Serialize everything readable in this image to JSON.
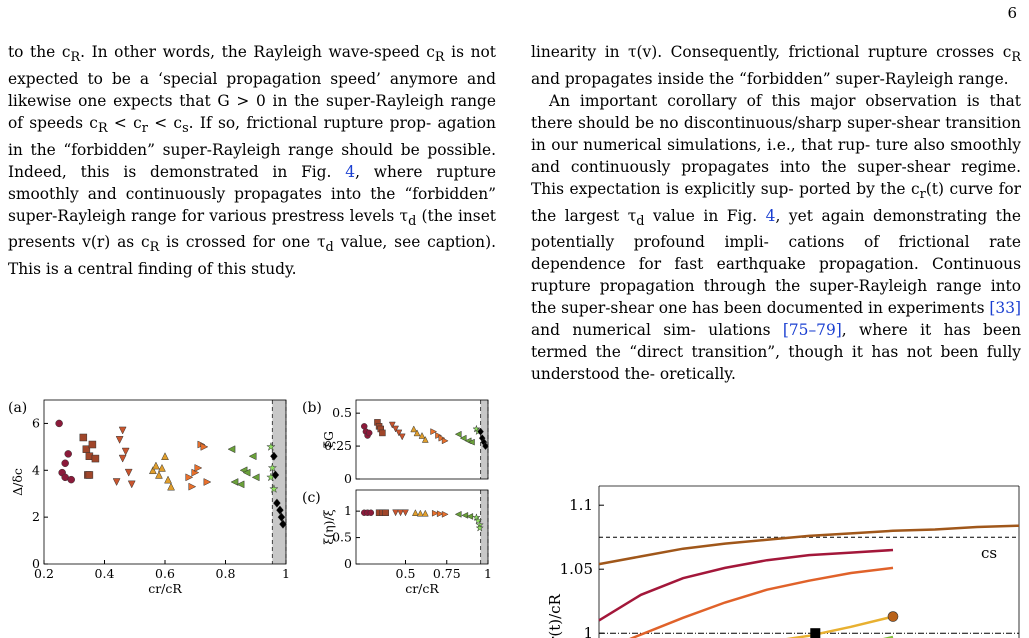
{
  "page_number": "6",
  "left_column": {
    "l1": "to the c",
    "l1b": ". In other words, the Rayleigh wave-speed c",
    "l1c": " is",
    "l2": "not expected to be a ‘special propagation speed’ anymore",
    "l3a": "and likewise one expects that G > 0 in the super-Rayleigh",
    "l4a": "range of speeds c",
    "l4b": " < c",
    "l4c": " < c",
    "l4d": ". If so, frictional rupture prop-",
    "l5": "agation in the “forbidden” super-Rayleigh range should",
    "l6a": "be possible. Indeed, this is demonstrated in Fig. ",
    "l6ref": "4",
    "l6b": ", where",
    "l7": "rupture smoothly and continuously propagates into the",
    "l8": "“forbidden” super-Rayleigh range for various prestress",
    "l9a": "levels τ",
    "l9b": " (the inset presents v(r) as c",
    "l9c": " is crossed for one",
    "l10a": "τ",
    "l10b": " value, see caption). This is a central finding of this",
    "l11": "study."
  },
  "right_column": {
    "r1": "linearity in τ(v). Consequently, frictional rupture crosses",
    "r2a": "c",
    "r2b": " and propagates inside the “forbidden” super-Rayleigh",
    "r3": "range.",
    "r4": "An important corollary of this major observation is",
    "r5": "that there should be no discontinuous/sharp super-shear",
    "r6": "transition in our numerical simulations, i.e., that rup-",
    "r7": "ture also smoothly and continuously propagates into the",
    "r8": "super-shear regime. This expectation is explicitly sup-",
    "r9a": "ported by the c",
    "r9b": "(t) curve for the largest τ",
    "r9c": " value in Fig. ",
    "r9ref": "4",
    "r9d": ",",
    "r10": "yet again demonstrating the potentially profound impli-",
    "r11": "cations of frictional rate dependence for fast earthquake",
    "r12": "propagation. Continuous rupture propagation through",
    "r13": "the super-Rayleigh range into the super-shear one has",
    "r14a": "been documented in experiments ",
    "r14ref": "[33]",
    "r14b": " and numerical sim-",
    "r15a": "ulations ",
    "r15ref": "[75–79]",
    "r15b": ", where it has been termed the “direct",
    "r16": "transition”, though it has not been fully understood the-",
    "r17": "oretically."
  },
  "sub_R": "R",
  "sub_r": "r",
  "sub_s": "s",
  "sub_d": "d",
  "chart_data": [
    {
      "panel": "(a)",
      "type": "scatter",
      "xlabel": "cr/cR",
      "ylabel": "Δ/δc",
      "xlim": [
        0.2,
        1.0
      ],
      "ylim": [
        0,
        7
      ],
      "xticks": [
        "0.2",
        "0.4",
        "0.6",
        "0.8",
        "1"
      ],
      "yticks": [
        "0",
        "2",
        "4",
        "6"
      ],
      "shaded_region": [
        0.955,
        1.0
      ],
      "points": [
        {
          "x": 0.25,
          "y": 6.0,
          "c": "#8b1a3a",
          "m": "o"
        },
        {
          "x": 0.26,
          "y": 3.9,
          "c": "#8b1a3a",
          "m": "o"
        },
        {
          "x": 0.27,
          "y": 3.7,
          "c": "#8b1a3a",
          "m": "o"
        },
        {
          "x": 0.27,
          "y": 4.3,
          "c": "#8b1a3a",
          "m": "o"
        },
        {
          "x": 0.28,
          "y": 4.7,
          "c": "#8b1a3a",
          "m": "o"
        },
        {
          "x": 0.29,
          "y": 3.6,
          "c": "#8b1a3a",
          "m": "o"
        },
        {
          "x": 0.33,
          "y": 5.4,
          "c": "#a0462a",
          "m": "s"
        },
        {
          "x": 0.34,
          "y": 4.9,
          "c": "#a0462a",
          "m": "s"
        },
        {
          "x": 0.35,
          "y": 4.6,
          "c": "#a0462a",
          "m": "s"
        },
        {
          "x": 0.36,
          "y": 5.1,
          "c": "#a0462a",
          "m": "s"
        },
        {
          "x": 0.37,
          "y": 4.5,
          "c": "#a0462a",
          "m": "s"
        },
        {
          "x": 0.345,
          "y": 3.8,
          "c": "#a0462a",
          "m": "s"
        },
        {
          "x": 0.35,
          "y": 3.8,
          "c": "#a0462a",
          "m": "s"
        },
        {
          "x": 0.45,
          "y": 5.3,
          "c": "#c9552e",
          "m": "v"
        },
        {
          "x": 0.46,
          "y": 4.5,
          "c": "#c9552e",
          "m": "v"
        },
        {
          "x": 0.47,
          "y": 4.8,
          "c": "#c9552e",
          "m": "v"
        },
        {
          "x": 0.48,
          "y": 3.9,
          "c": "#c9552e",
          "m": "v"
        },
        {
          "x": 0.49,
          "y": 3.4,
          "c": "#c9552e",
          "m": "v"
        },
        {
          "x": 0.46,
          "y": 5.7,
          "c": "#c9552e",
          "m": "v"
        },
        {
          "x": 0.44,
          "y": 3.5,
          "c": "#c9552e",
          "m": "v"
        },
        {
          "x": 0.56,
          "y": 4.0,
          "c": "#e09e2c",
          "m": "^"
        },
        {
          "x": 0.57,
          "y": 4.2,
          "c": "#e09e2c",
          "m": "^"
        },
        {
          "x": 0.58,
          "y": 3.8,
          "c": "#e09e2c",
          "m": "^"
        },
        {
          "x": 0.59,
          "y": 4.1,
          "c": "#e09e2c",
          "m": "^"
        },
        {
          "x": 0.6,
          "y": 4.6,
          "c": "#e09e2c",
          "m": "^"
        },
        {
          "x": 0.61,
          "y": 3.6,
          "c": "#e09e2c",
          "m": "^"
        },
        {
          "x": 0.62,
          "y": 3.3,
          "c": "#e09e2c",
          "m": "^"
        },
        {
          "x": 0.68,
          "y": 3.7,
          "c": "#e8702c",
          "m": ">"
        },
        {
          "x": 0.69,
          "y": 3.3,
          "c": "#e8702c",
          "m": ">"
        },
        {
          "x": 0.7,
          "y": 3.9,
          "c": "#e8702c",
          "m": ">"
        },
        {
          "x": 0.71,
          "y": 4.1,
          "c": "#e8702c",
          "m": ">"
        },
        {
          "x": 0.72,
          "y": 5.1,
          "c": "#e8702c",
          "m": ">"
        },
        {
          "x": 0.73,
          "y": 5.0,
          "c": "#e8702c",
          "m": ">"
        },
        {
          "x": 0.74,
          "y": 3.5,
          "c": "#e8702c",
          "m": ">"
        },
        {
          "x": 0.82,
          "y": 4.9,
          "c": "#6aa03a",
          "m": "<"
        },
        {
          "x": 0.83,
          "y": 3.5,
          "c": "#6aa03a",
          "m": "<"
        },
        {
          "x": 0.85,
          "y": 3.4,
          "c": "#6aa03a",
          "m": "<"
        },
        {
          "x": 0.86,
          "y": 4.0,
          "c": "#6aa03a",
          "m": "<"
        },
        {
          "x": 0.87,
          "y": 3.9,
          "c": "#6aa03a",
          "m": "<"
        },
        {
          "x": 0.9,
          "y": 3.7,
          "c": "#6aa03a",
          "m": "<"
        },
        {
          "x": 0.89,
          "y": 4.6,
          "c": "#6aa03a",
          "m": "<"
        },
        {
          "x": 0.95,
          "y": 5.0,
          "c": "#90e060",
          "m": "*"
        },
        {
          "x": 0.955,
          "y": 4.1,
          "c": "#90e060",
          "m": "*"
        },
        {
          "x": 0.96,
          "y": 3.2,
          "c": "#90e060",
          "m": "*"
        },
        {
          "x": 0.95,
          "y": 3.7,
          "c": "#90e060",
          "m": "*"
        },
        {
          "x": 0.96,
          "y": 4.6,
          "c": "#000000",
          "m": "d"
        },
        {
          "x": 0.965,
          "y": 3.8,
          "c": "#000000",
          "m": "d"
        },
        {
          "x": 0.97,
          "y": 2.6,
          "c": "#000000",
          "m": "d"
        },
        {
          "x": 0.98,
          "y": 2.3,
          "c": "#000000",
          "m": "d"
        },
        {
          "x": 0.985,
          "y": 2.0,
          "c": "#000000",
          "m": "d"
        },
        {
          "x": 0.99,
          "y": 1.7,
          "c": "#000000",
          "m": "d"
        }
      ]
    },
    {
      "panel": "(b)",
      "type": "scatter",
      "ylabel": "ξG",
      "xlim": [
        0.2,
        1.0
      ],
      "ylim": [
        0,
        0.6
      ],
      "yticks": [
        "0",
        "0.25",
        "0.5"
      ],
      "shaded_region": [
        0.955,
        1.0
      ],
      "points": [
        {
          "x": 0.25,
          "y": 0.4,
          "c": "#8b1a3a",
          "m": "o"
        },
        {
          "x": 0.26,
          "y": 0.36,
          "c": "#8b1a3a",
          "m": "o"
        },
        {
          "x": 0.27,
          "y": 0.33,
          "c": "#8b1a3a",
          "m": "o"
        },
        {
          "x": 0.28,
          "y": 0.35,
          "c": "#8b1a3a",
          "m": "o"
        },
        {
          "x": 0.33,
          "y": 0.43,
          "c": "#a0462a",
          "m": "s"
        },
        {
          "x": 0.34,
          "y": 0.4,
          "c": "#a0462a",
          "m": "s"
        },
        {
          "x": 0.35,
          "y": 0.38,
          "c": "#a0462a",
          "m": "s"
        },
        {
          "x": 0.36,
          "y": 0.35,
          "c": "#a0462a",
          "m": "s"
        },
        {
          "x": 0.42,
          "y": 0.41,
          "c": "#c9552e",
          "m": "v"
        },
        {
          "x": 0.44,
          "y": 0.38,
          "c": "#c9552e",
          "m": "v"
        },
        {
          "x": 0.46,
          "y": 0.35,
          "c": "#c9552e",
          "m": "v"
        },
        {
          "x": 0.48,
          "y": 0.32,
          "c": "#c9552e",
          "m": "v"
        },
        {
          "x": 0.55,
          "y": 0.38,
          "c": "#e09e2c",
          "m": "^"
        },
        {
          "x": 0.57,
          "y": 0.35,
          "c": "#e09e2c",
          "m": "^"
        },
        {
          "x": 0.6,
          "y": 0.33,
          "c": "#e09e2c",
          "m": "^"
        },
        {
          "x": 0.62,
          "y": 0.3,
          "c": "#e09e2c",
          "m": "^"
        },
        {
          "x": 0.67,
          "y": 0.36,
          "c": "#e8702c",
          "m": ">"
        },
        {
          "x": 0.7,
          "y": 0.33,
          "c": "#e8702c",
          "m": ">"
        },
        {
          "x": 0.72,
          "y": 0.31,
          "c": "#e8702c",
          "m": ">"
        },
        {
          "x": 0.74,
          "y": 0.29,
          "c": "#e8702c",
          "m": ">"
        },
        {
          "x": 0.82,
          "y": 0.34,
          "c": "#6aa03a",
          "m": "<"
        },
        {
          "x": 0.85,
          "y": 0.31,
          "c": "#6aa03a",
          "m": "<"
        },
        {
          "x": 0.88,
          "y": 0.29,
          "c": "#6aa03a",
          "m": "<"
        },
        {
          "x": 0.9,
          "y": 0.28,
          "c": "#6aa03a",
          "m": "<"
        },
        {
          "x": 0.93,
          "y": 0.38,
          "c": "#90e060",
          "m": "*"
        },
        {
          "x": 0.94,
          "y": 0.36,
          "c": "#90e060",
          "m": "*"
        },
        {
          "x": 0.955,
          "y": 0.36,
          "c": "#000000",
          "m": "d"
        },
        {
          "x": 0.965,
          "y": 0.31,
          "c": "#000000",
          "m": "d"
        },
        {
          "x": 0.975,
          "y": 0.28,
          "c": "#000000",
          "m": "d"
        },
        {
          "x": 0.985,
          "y": 0.25,
          "c": "#000000",
          "m": "d"
        }
      ]
    },
    {
      "panel": "(c)",
      "type": "scatter",
      "xlabel": "cr/cR",
      "ylabel": "ξ(η)/ξ",
      "xlim": [
        0.2,
        1.0
      ],
      "ylim": [
        0,
        1.4
      ],
      "xticks": [
        "0.5",
        "0.75",
        "1"
      ],
      "yticks": [
        "0",
        "0.5",
        "1"
      ],
      "shaded_region": [
        0.955,
        1.0
      ],
      "points": [
        {
          "x": 0.25,
          "y": 0.97,
          "c": "#8b1a3a",
          "m": "o"
        },
        {
          "x": 0.27,
          "y": 0.97,
          "c": "#8b1a3a",
          "m": "o"
        },
        {
          "x": 0.29,
          "y": 0.97,
          "c": "#8b1a3a",
          "m": "o"
        },
        {
          "x": 0.34,
          "y": 0.97,
          "c": "#a0462a",
          "m": "s"
        },
        {
          "x": 0.36,
          "y": 0.97,
          "c": "#a0462a",
          "m": "s"
        },
        {
          "x": 0.38,
          "y": 0.97,
          "c": "#a0462a",
          "m": "s"
        },
        {
          "x": 0.44,
          "y": 0.97,
          "c": "#c9552e",
          "m": "v"
        },
        {
          "x": 0.47,
          "y": 0.97,
          "c": "#c9552e",
          "m": "v"
        },
        {
          "x": 0.5,
          "y": 0.97,
          "c": "#c9552e",
          "m": "v"
        },
        {
          "x": 0.56,
          "y": 0.97,
          "c": "#e09e2c",
          "m": "^"
        },
        {
          "x": 0.59,
          "y": 0.96,
          "c": "#e09e2c",
          "m": "^"
        },
        {
          "x": 0.62,
          "y": 0.96,
          "c": "#e09e2c",
          "m": "^"
        },
        {
          "x": 0.68,
          "y": 0.96,
          "c": "#e8702c",
          "m": ">"
        },
        {
          "x": 0.71,
          "y": 0.95,
          "c": "#e8702c",
          "m": ">"
        },
        {
          "x": 0.74,
          "y": 0.94,
          "c": "#e8702c",
          "m": ">"
        },
        {
          "x": 0.82,
          "y": 0.94,
          "c": "#6aa03a",
          "m": "<"
        },
        {
          "x": 0.86,
          "y": 0.92,
          "c": "#6aa03a",
          "m": "<"
        },
        {
          "x": 0.89,
          "y": 0.9,
          "c": "#6aa03a",
          "m": "<"
        },
        {
          "x": 0.93,
          "y": 0.88,
          "c": "#90e060",
          "m": "*"
        },
        {
          "x": 0.94,
          "y": 0.82,
          "c": "#90e060",
          "m": "*"
        },
        {
          "x": 0.95,
          "y": 0.74,
          "c": "#90e060",
          "m": "*"
        },
        {
          "x": 0.95,
          "y": 0.68,
          "c": "#90e060",
          "m": "*"
        }
      ]
    },
    {
      "panel": "fig4-partial",
      "type": "line",
      "ylabel": "cr(t)/cR",
      "yticks": [
        "1",
        "1.05",
        "1.1"
      ],
      "ylim": [
        0.99,
        1.115
      ],
      "cs_label": "cs",
      "cs_value": 1.075,
      "cr_value": 1.0,
      "series": [
        {
          "color": "#a0571a",
          "x": [
            0.0,
            0.1,
            0.2,
            0.3,
            0.4,
            0.5,
            0.6,
            0.7,
            0.8,
            0.9,
            1.0
          ],
          "y": [
            1.054,
            1.06,
            1.066,
            1.07,
            1.073,
            1.076,
            1.078,
            1.08,
            1.081,
            1.083,
            1.084
          ]
        },
        {
          "color": "#a3173a",
          "x": [
            0.0,
            0.1,
            0.2,
            0.3,
            0.4,
            0.5,
            0.6,
            0.7
          ],
          "y": [
            1.01,
            1.03,
            1.043,
            1.051,
            1.057,
            1.061,
            1.063,
            1.065
          ]
        },
        {
          "color": "#e0622a",
          "x": [
            0.07,
            0.2,
            0.3,
            0.4,
            0.5,
            0.6,
            0.7
          ],
          "y": [
            0.995,
            1.012,
            1.024,
            1.034,
            1.041,
            1.047,
            1.051
          ]
        },
        {
          "color": "#e8b030",
          "x": [
            0.38,
            0.5,
            0.6,
            0.7
          ],
          "y": [
            0.992,
            0.998,
            1.005,
            1.013
          ]
        },
        {
          "color": "#7fbf3a",
          "x": [
            0.6,
            0.66,
            0.7
          ],
          "y": [
            0.99,
            0.994,
            0.997
          ]
        }
      ]
    }
  ]
}
